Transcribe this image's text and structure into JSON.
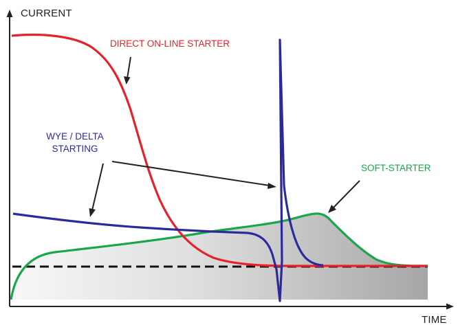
{
  "labels": {
    "y_axis": "CURRENT",
    "x_axis": "TIME",
    "direct_online": "DIRECT ON-LINE STARTER",
    "wye_delta_line1": "WYE / DELTA",
    "wye_delta_line2": "STARTING",
    "soft_starter": "SOFT-STARTER"
  },
  "colors": {
    "direct_online": "#e8202a",
    "wye_delta": "#2b2a9a",
    "soft_starter": "#1aa64a",
    "nominal_line": "#111111",
    "axis": "#222222",
    "arrow": "#222222",
    "shade_start": "#f7f7f7",
    "shade_end": "#a6a6a6"
  }
}
